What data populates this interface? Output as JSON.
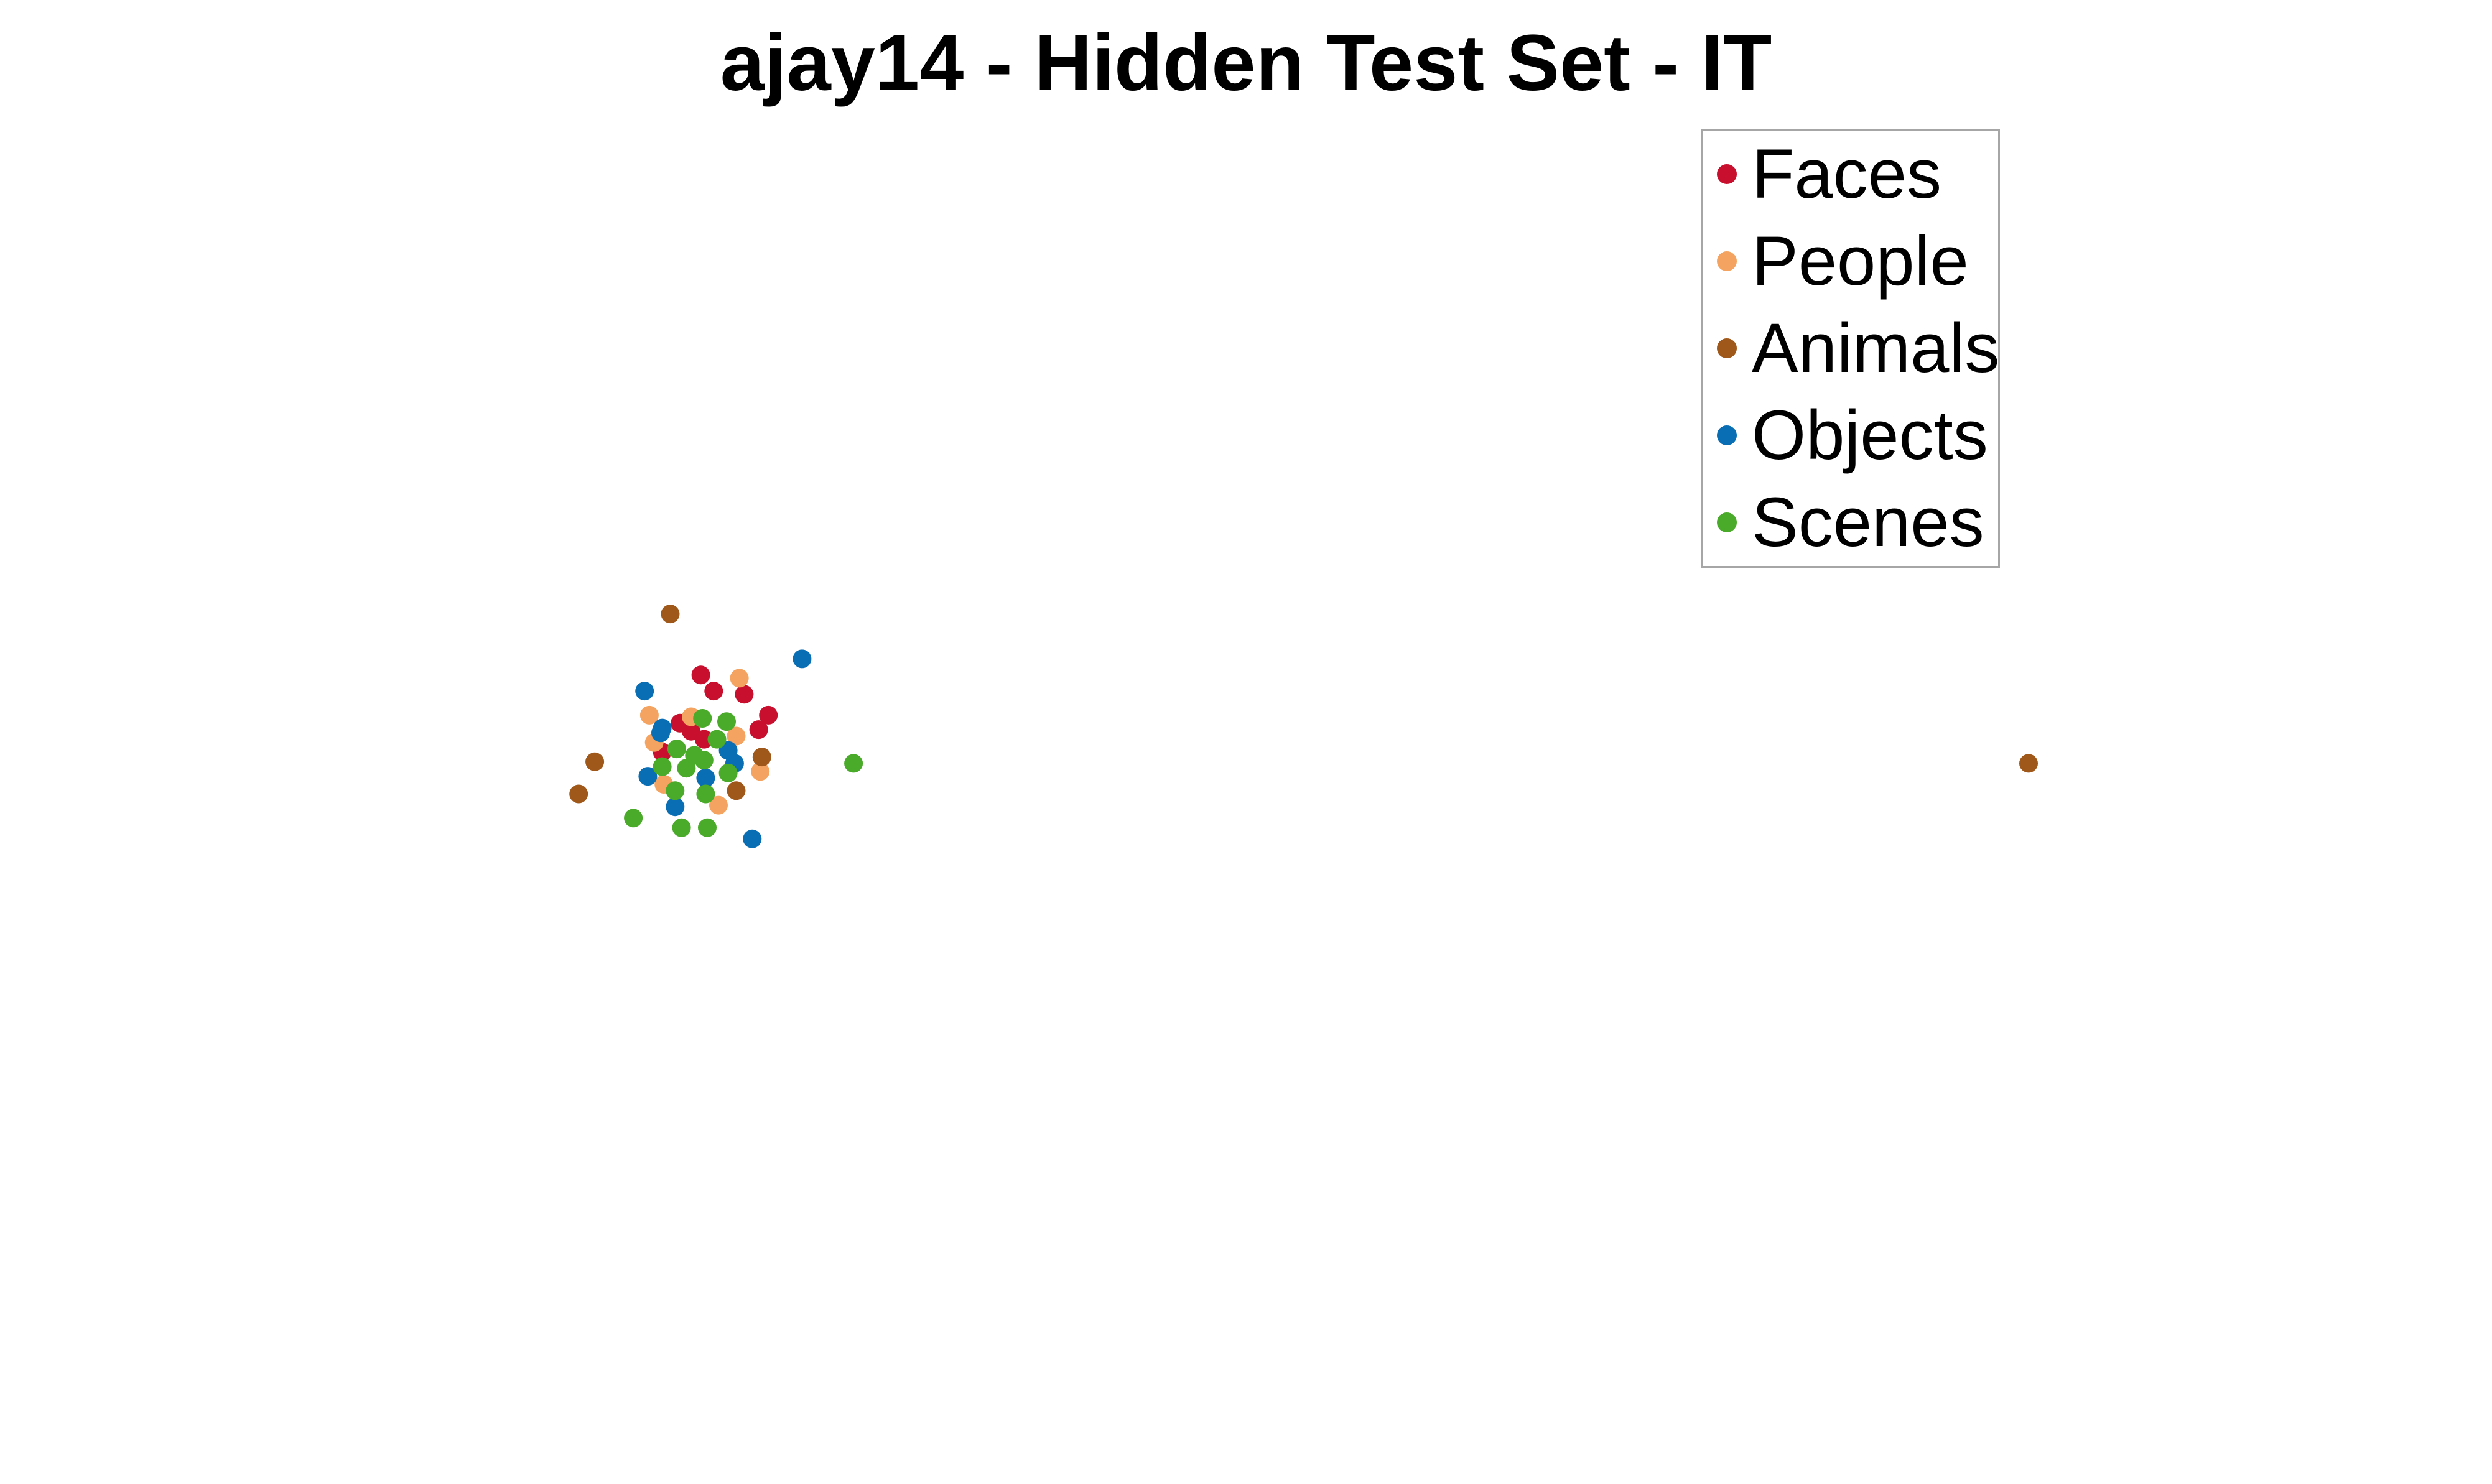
{
  "chart_data": {
    "type": "scatter",
    "title": "ajay14 - Hidden Test Set - IT",
    "xlabel": "",
    "ylabel": "",
    "axes_visible": false,
    "grid": false,
    "legend_position": "top-right",
    "series": [
      {
        "name": "Faces",
        "color": "#c8102e",
        "points": [
          [
            436,
            420
          ],
          [
            444,
            430
          ],
          [
            463,
            432
          ],
          [
            478,
            445
          ],
          [
            472,
            454
          ],
          [
            423,
            450
          ],
          [
            412,
            468
          ],
          [
            438,
            460
          ],
          [
            430,
            455
          ]
        ]
      },
      {
        "name": "People",
        "color": "#f4a460",
        "points": [
          [
            460,
            422
          ],
          [
            404,
            445
          ],
          [
            430,
            446
          ],
          [
            458,
            458
          ],
          [
            407,
            462
          ],
          [
            473,
            480
          ],
          [
            447,
            501
          ],
          [
            413,
            488
          ]
        ]
      },
      {
        "name": "Animals",
        "color": "#a0581a",
        "points": [
          [
            417,
            382
          ],
          [
            370,
            474
          ],
          [
            360,
            494
          ],
          [
            474,
            471
          ],
          [
            458,
            492
          ],
          [
            1262,
            475
          ]
        ]
      },
      {
        "name": "Objects",
        "color": "#0a6eb4",
        "points": [
          [
            499,
            410
          ],
          [
            401,
            430
          ],
          [
            411,
            456
          ],
          [
            412,
            453
          ],
          [
            453,
            467
          ],
          [
            457,
            475
          ],
          [
            403,
            483
          ],
          [
            439,
            484
          ],
          [
            420,
            502
          ],
          [
            468,
            522
          ]
        ]
      },
      {
        "name": "Scenes",
        "color": "#4aaa2a",
        "points": [
          [
            437,
            447
          ],
          [
            452,
            449
          ],
          [
            446,
            460
          ],
          [
            421,
            466
          ],
          [
            432,
            470
          ],
          [
            438,
            473
          ],
          [
            412,
            477
          ],
          [
            427,
            478
          ],
          [
            453,
            481
          ],
          [
            420,
            492
          ],
          [
            439,
            494
          ],
          [
            531,
            475
          ],
          [
            394,
            509
          ],
          [
            424,
            515
          ],
          [
            440,
            515
          ]
        ]
      }
    ]
  }
}
